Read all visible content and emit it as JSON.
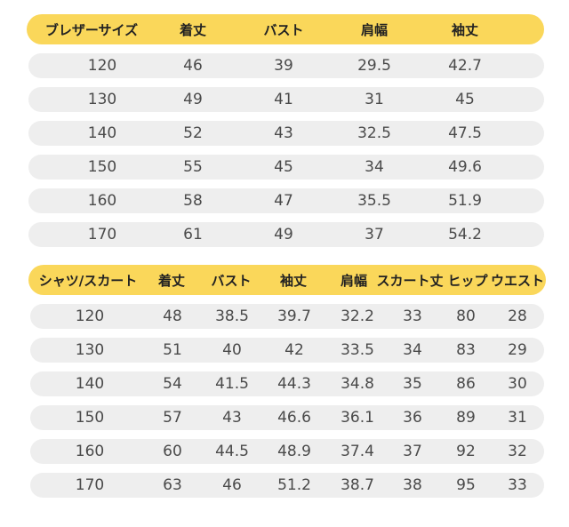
{
  "blazer_table": {
    "headers": [
      "ブレザーサイズ",
      "着丈",
      "バスト",
      "肩幅",
      "袖丈"
    ],
    "rows": [
      [
        "120",
        "46",
        "39",
        "29.5",
        "42.7"
      ],
      [
        "130",
        "49",
        "41",
        "31",
        "45"
      ],
      [
        "140",
        "52",
        "43",
        "32.5",
        "47.5"
      ],
      [
        "150",
        "55",
        "45",
        "34",
        "49.6"
      ],
      [
        "160",
        "58",
        "47",
        "35.5",
        "51.9"
      ],
      [
        "170",
        "61",
        "49",
        "37",
        "54.2"
      ]
    ]
  },
  "shirt_table": {
    "headers": [
      "シャツ/スカート",
      "着丈",
      "バスト",
      "袖丈",
      "肩幅",
      "スカート丈",
      "ヒップ",
      "ウエスト"
    ],
    "rows": [
      [
        "120",
        "48",
        "38.5",
        "39.7",
        "32.2",
        "33",
        "80",
        "28"
      ],
      [
        "130",
        "51",
        "40",
        "42",
        "33.5",
        "34",
        "83",
        "29"
      ],
      [
        "140",
        "54",
        "41.5",
        "44.3",
        "34.8",
        "35",
        "86",
        "30"
      ],
      [
        "150",
        "57",
        "43",
        "46.6",
        "36.1",
        "36",
        "89",
        "31"
      ],
      [
        "160",
        "60",
        "44.5",
        "48.9",
        "37.4",
        "37",
        "92",
        "32"
      ],
      [
        "170",
        "63",
        "46",
        "51.2",
        "38.7",
        "38",
        "95",
        "33"
      ]
    ]
  },
  "colors": {
    "header_bg": "#fad75a",
    "row_bg": "#eeeeee"
  }
}
